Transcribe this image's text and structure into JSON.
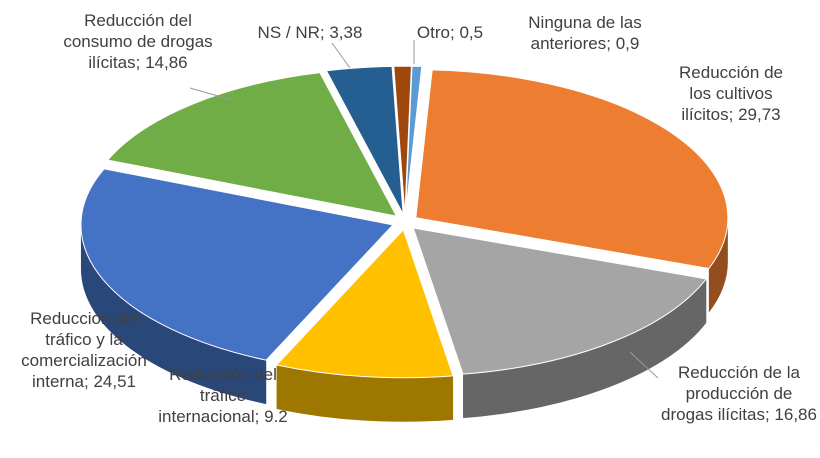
{
  "chart_data": {
    "type": "pie3d",
    "categories": [
      "Reducción de los cultivos ilícitos",
      "Reducción de la producción de drogas ilícitas",
      "Reducción del tráfico internacional",
      "Reducción del tráfico y la comercialización interna",
      "Reducción del consumo de drogas ilícitas",
      "NS / NR",
      "Ninguna de las anteriores",
      "Otro"
    ],
    "values": [
      29.73,
      16.86,
      9.2,
      24.51,
      14.86,
      3.38,
      0.9,
      0.5
    ],
    "value_labels": [
      "29,73",
      "16,86",
      "9.2",
      "24,51",
      "14,86",
      "3,38",
      "0,9",
      "0,5"
    ],
    "label_separator": "; ",
    "colors": [
      "#ED7D31",
      "#A5A5A5",
      "#FFC000",
      "#4472C4",
      "#70AD47",
      "#255E91",
      "#9E480E",
      "#5B9BD5"
    ]
  }
}
